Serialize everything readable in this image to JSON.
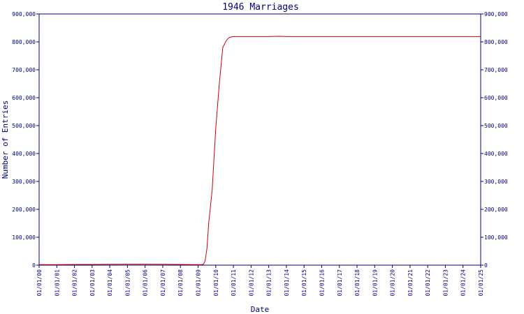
{
  "chart_data": {
    "type": "line",
    "title": "1946 Marriages",
    "xlabel": "Date",
    "ylabel": "Number of Entries",
    "ylim": [
      0,
      900000
    ],
    "y_ticks": [
      0,
      100000,
      200000,
      300000,
      400000,
      500000,
      600000,
      700000,
      800000,
      900000
    ],
    "y_tick_labels": [
      "0",
      "100,000",
      "200,000",
      "300,000",
      "400,000",
      "500,000",
      "600,000",
      "700,000",
      "800,000",
      "900,000"
    ],
    "x_tick_labels": [
      "01/01/00",
      "01/01/01",
      "01/01/02",
      "01/01/03",
      "01/01/04",
      "01/01/05",
      "01/01/06",
      "01/01/07",
      "01/01/08",
      "01/01/09",
      "01/01/10",
      "01/01/11",
      "01/01/12",
      "01/01/13",
      "01/01/14",
      "01/01/15",
      "01/01/16",
      "01/01/17",
      "01/01/18",
      "01/01/19",
      "01/01/20",
      "01/01/21",
      "01/01/22",
      "01/01/23",
      "01/01/24",
      "01/01/25"
    ],
    "grid": false,
    "colors": {
      "axis": "#000080",
      "line": "#cc0000"
    },
    "series": [
      {
        "x": [
          0,
          1,
          2,
          3,
          4,
          5,
          6,
          7,
          8,
          9,
          9.2,
          9.3,
          9.4,
          9.5,
          9.6,
          9.8,
          10.0,
          10.2,
          10.4,
          10.6,
          10.7,
          10.8,
          10.9,
          11.0,
          11.2,
          11.5,
          12,
          13,
          13.6,
          14,
          15,
          16,
          17,
          18,
          19,
          20,
          21,
          22,
          23,
          24,
          25
        ],
        "y": [
          2000,
          2000,
          2500,
          2500,
          3000,
          3500,
          3500,
          3000,
          2500,
          2000,
          2000,
          3000,
          15000,
          60000,
          150000,
          270000,
          490000,
          650000,
          780000,
          805000,
          812000,
          816000,
          818000,
          819000,
          819000,
          819000,
          819000,
          819000,
          820000,
          819000,
          819000,
          819000,
          819000,
          819000,
          819000,
          819000,
          819000,
          819000,
          819000,
          819000,
          819000
        ]
      }
    ]
  }
}
